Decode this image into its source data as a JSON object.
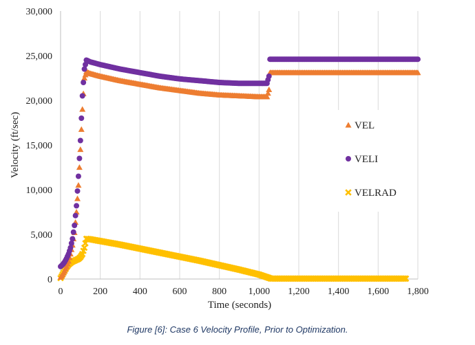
{
  "caption": "Figure [6]: Case 6 Velocity Profile, Prior to Optimization.",
  "chart_data": {
    "type": "scatter",
    "xlabel": "Time (seconds)",
    "ylabel": "Velocity (ft/sec)",
    "xlim": [
      0,
      1800
    ],
    "ylim": [
      0,
      30000
    ],
    "xticks": [
      "0",
      "200",
      "400",
      "600",
      "800",
      "1,000",
      "1,200",
      "1,400",
      "1,600",
      "1,800"
    ],
    "yticks": [
      "0",
      "5,000",
      "10,000",
      "15,000",
      "20,000",
      "25,000",
      "30,000"
    ],
    "grid": "vertical",
    "legend_position": "right",
    "series": [
      {
        "name": "VEL",
        "marker": "triangle",
        "color": "#ed7d31",
        "x": [
          0,
          10,
          20,
          30,
          40,
          50,
          60,
          70,
          80,
          90,
          100,
          110,
          120,
          130,
          150,
          200,
          300,
          400,
          500,
          600,
          700,
          800,
          900,
          1000,
          1040,
          1050,
          1055,
          1060,
          1100,
          1200,
          1300,
          1400,
          1500,
          1600,
          1700,
          1800
        ],
        "y": [
          200,
          500,
          900,
          1400,
          2000,
          2800,
          3800,
          5200,
          7500,
          10500,
          14500,
          19000,
          22500,
          23200,
          23000,
          22700,
          22200,
          21800,
          21400,
          21100,
          20800,
          20600,
          20500,
          20400,
          20400,
          21200,
          23100,
          23100,
          23100,
          23100,
          23100,
          23100,
          23100,
          23100,
          23100,
          23100
        ]
      },
      {
        "name": "VELI",
        "marker": "circle",
        "color": "#7030a0",
        "x": [
          0,
          10,
          20,
          30,
          40,
          50,
          60,
          70,
          80,
          90,
          100,
          110,
          120,
          130,
          150,
          200,
          300,
          400,
          500,
          600,
          700,
          800,
          900,
          1000,
          1040,
          1050,
          1055,
          1060,
          1100,
          1200,
          1300,
          1400,
          1500,
          1600,
          1700,
          1800
        ],
        "y": [
          1400,
          1600,
          1900,
          2300,
          2800,
          3500,
          4500,
          6000,
          8200,
          11500,
          15500,
          20500,
          23500,
          24500,
          24300,
          24000,
          23500,
          23100,
          22700,
          22400,
          22200,
          22000,
          21900,
          21900,
          21900,
          22700,
          24600,
          24600,
          24600,
          24600,
          24600,
          24600,
          24600,
          24600,
          24600,
          24600
        ]
      },
      {
        "name": "VELRAD",
        "marker": "x",
        "color": "#ffc000",
        "x": [
          0,
          10,
          20,
          30,
          40,
          50,
          60,
          70,
          80,
          90,
          100,
          110,
          120,
          130,
          150,
          200,
          300,
          400,
          500,
          600,
          700,
          800,
          900,
          1000,
          1040,
          1060,
          1100,
          1200,
          1300,
          1400,
          1500,
          1600,
          1700,
          1740
        ],
        "y": [
          100,
          500,
          900,
          1300,
          1600,
          1800,
          1950,
          2050,
          2150,
          2250,
          2450,
          2800,
          3500,
          4500,
          4450,
          4250,
          3850,
          3400,
          2950,
          2500,
          2050,
          1550,
          1050,
          500,
          200,
          50,
          50,
          50,
          50,
          50,
          50,
          50,
          50,
          50
        ]
      }
    ]
  }
}
